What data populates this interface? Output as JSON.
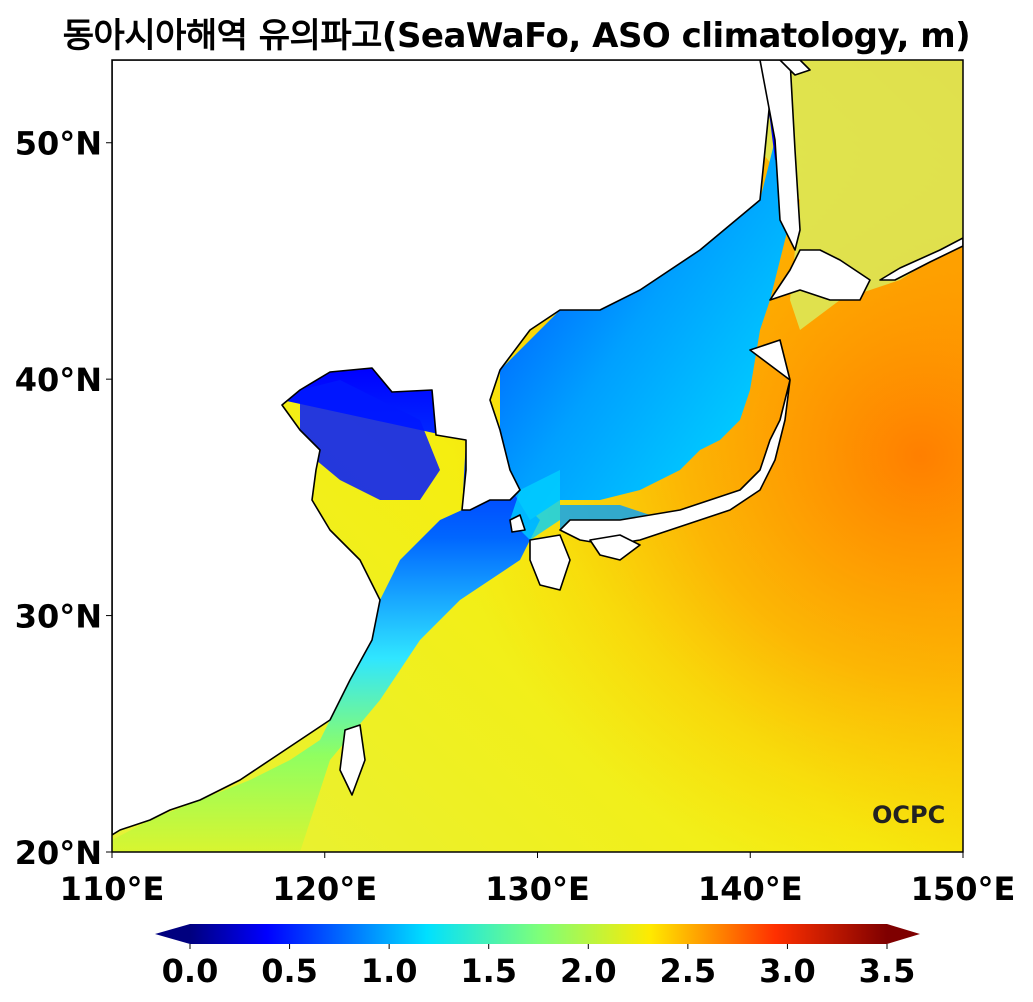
{
  "title": "동아시아해역 유의파고(SeaWaFo, ASO climatology, m)",
  "map": {
    "lon_range": [
      110,
      150
    ],
    "lat_range": [
      20,
      53.5
    ],
    "x_ticks": [
      {
        "value": 110,
        "label": "110°E"
      },
      {
        "value": 120,
        "label": "120°E"
      },
      {
        "value": 130,
        "label": "130°E"
      },
      {
        "value": 140,
        "label": "140°E"
      },
      {
        "value": 150,
        "label": "150°E"
      }
    ],
    "y_ticks": [
      {
        "value": 20,
        "label": "20°N"
      },
      {
        "value": 30,
        "label": "30°N"
      },
      {
        "value": 40,
        "label": "40°N"
      },
      {
        "value": 50,
        "label": "50°N"
      }
    ],
    "colormap": "jet",
    "coastline_color": "#000000",
    "land_color": "#ffffff"
  },
  "colorbar": {
    "min": 0.0,
    "max": 3.5,
    "extend": "both",
    "ticks": [
      "0.0",
      "0.5",
      "1.0",
      "1.5",
      "2.0",
      "2.5",
      "3.0",
      "3.5"
    ]
  },
  "logo": {
    "text": "OCPC"
  }
}
